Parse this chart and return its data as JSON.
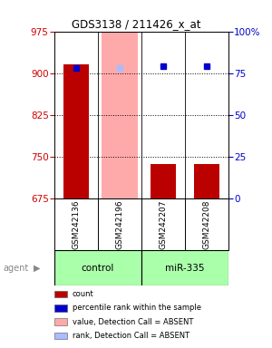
{
  "title": "GDS3138 / 211426_x_at",
  "samples": [
    "GSM242136",
    "GSM242196",
    "GSM242207",
    "GSM242208"
  ],
  "groups": [
    "control",
    "control",
    "miR-335",
    "miR-335"
  ],
  "count_values": [
    916,
    675,
    737,
    737
  ],
  "percentile_values": [
    78,
    78,
    79,
    79
  ],
  "absent_value_sample": 1,
  "absent_rank_sample": 1,
  "ylim_left": [
    675,
    975
  ],
  "ylim_right": [
    0,
    100
  ],
  "yticks_left": [
    675,
    750,
    825,
    900,
    975
  ],
  "yticks_right": [
    0,
    25,
    50,
    75,
    100
  ],
  "bar_color": "#bb0000",
  "dot_color": "#0000cc",
  "absent_bar_color": "#ffaaaa",
  "absent_dot_color": "#aabbff",
  "sample_box_color": "#c8c8c8",
  "plot_bg_color": "#ffffff",
  "grid_color": "#000000",
  "left_axis_color": "#cc0000",
  "right_axis_color": "#0000cc",
  "legend_items": [
    {
      "color": "#bb0000",
      "label": "count"
    },
    {
      "color": "#0000cc",
      "label": "percentile rank within the sample"
    },
    {
      "color": "#ffaaaa",
      "label": "value, Detection Call = ABSENT"
    },
    {
      "color": "#aabbff",
      "label": "rank, Detection Call = ABSENT"
    }
  ]
}
